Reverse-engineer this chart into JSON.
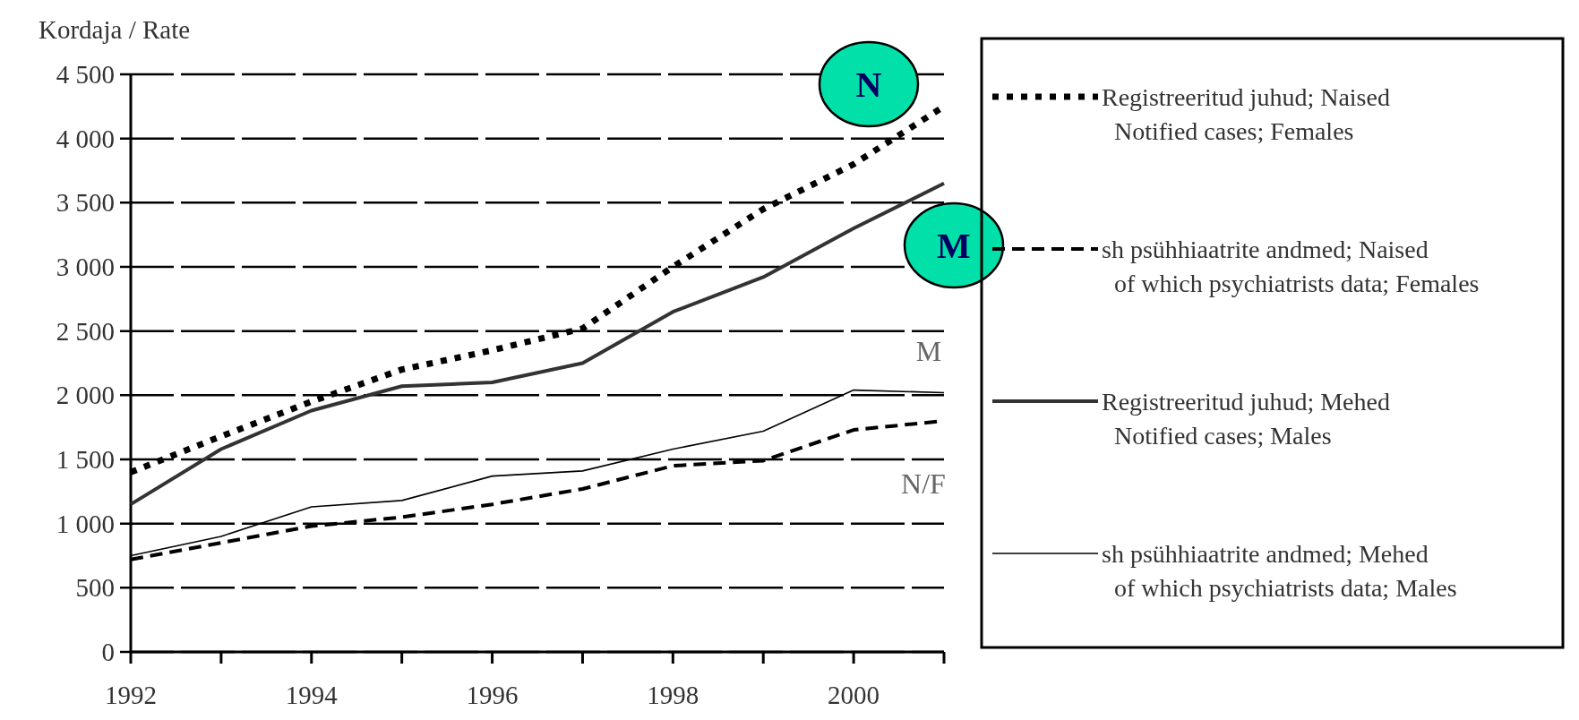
{
  "chart_data": {
    "type": "line",
    "ylabel": "Kordaja / Rate",
    "x": [
      1992,
      1993,
      1994,
      1995,
      1996,
      1997,
      1998,
      1999,
      2000,
      2001
    ],
    "series": [
      {
        "name": "Registreeritud juhud; Naised\nNotified cases; Females",
        "color": "#000000",
        "line_style": "dotted",
        "values": [
          1400,
          1680,
          1950,
          2200,
          2350,
          2520,
          3000,
          3450,
          3800,
          4250
        ]
      },
      {
        "name": "sh psühhiaatrite andmed; Naised\nof which psychiatrists data; Females",
        "color": "#000000",
        "line_style": "dashed",
        "values": [
          720,
          850,
          980,
          1050,
          1150,
          1270,
          1450,
          1490,
          1730,
          1800
        ]
      },
      {
        "name": "Registreeritud juhud; Mehed\nNotified cases; Males",
        "color": "#333333",
        "line_style": "solid",
        "values": [
          1150,
          1580,
          1880,
          2070,
          2100,
          2250,
          2650,
          2920,
          3300,
          3650
        ]
      },
      {
        "name": "sh psühhiaatrite andmed; Mehed\nof which psychiatrists data; Males",
        "color": "#000000",
        "line_style": "solid",
        "values": [
          750,
          900,
          1130,
          1180,
          1370,
          1410,
          1580,
          1720,
          2040,
          2020
        ]
      }
    ],
    "xlim": [
      1992,
      2001
    ],
    "xticks": [
      1992,
      {
        "value": 1993,
        "label": null
      },
      1994,
      {
        "value": 1995,
        "label": null
      },
      1996,
      {
        "value": 1997,
        "label": null
      },
      1998,
      {
        "value": 1999,
        "label": null
      },
      2000,
      {
        "value": 2001,
        "label": null
      }
    ],
    "ylim": [
      0,
      4500
    ],
    "yticks": [
      0,
      500,
      {
        "value": 1000,
        "label": "1 000"
      },
      {
        "value": 1500,
        "label": "1 500"
      },
      {
        "value": 2000,
        "label": "2 000"
      },
      {
        "value": 2500,
        "label": "2 500"
      },
      {
        "value": 3000,
        "label": "3 000"
      },
      {
        "value": 3500,
        "label": "3 500"
      },
      {
        "value": 4000,
        "label": "4 000"
      },
      {
        "value": 4500,
        "label": "4 500"
      }
    ],
    "grid": "y",
    "legend": "right",
    "marker": "none",
    "annotations": [
      "N",
      "M",
      "M",
      "N/F"
    ]
  }
}
